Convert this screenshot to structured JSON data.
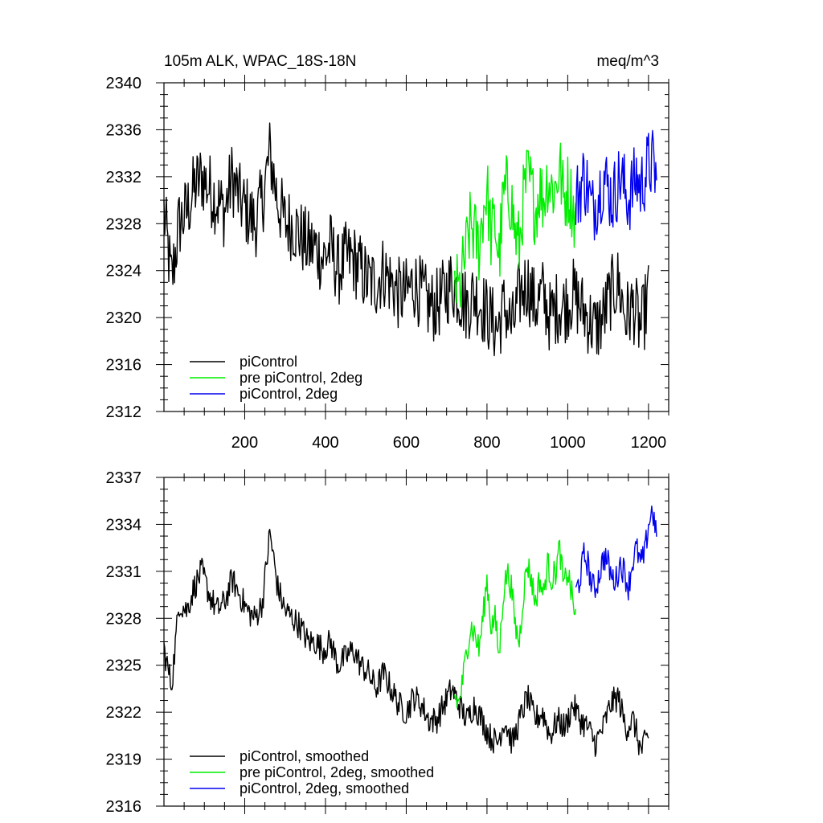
{
  "header": {
    "left": "105m ALK, WPAC_18S-18N",
    "right": "meq/m^3"
  },
  "chart_data": [
    {
      "type": "line",
      "xlim": [
        0,
        1250
      ],
      "ylim": [
        2312,
        2340
      ],
      "xticks": [
        200,
        400,
        600,
        800,
        1000,
        1200
      ],
      "yticks": [
        2312,
        2316,
        2320,
        2324,
        2328,
        2332,
        2336,
        2340
      ],
      "legend_position": "bottom-left",
      "grid": false,
      "series": [
        {
          "name": "piControl",
          "color": "#000000",
          "x_start": 0,
          "x_end": 1200,
          "values": [
            2329,
            2323,
            2328,
            2329,
            2331,
            2332,
            2331,
            2330,
            2329,
            2332,
            2330,
            2329,
            2328,
            2330,
            2334,
            2330,
            2328,
            2328,
            2327,
            2326,
            2326,
            2325,
            2326,
            2324,
            2325,
            2325,
            2324,
            2323,
            2323,
            2324,
            2323,
            2322,
            2322,
            2323,
            2322,
            2321,
            2321,
            2322,
            2323,
            2322,
            2321,
            2322,
            2321,
            2320,
            2319,
            2321,
            2319,
            2322,
            2323,
            2321,
            2322,
            2320,
            2321,
            2321,
            2322,
            2321,
            2320,
            2319,
            2320,
            2322,
            2323,
            2320,
            2321,
            2319,
            2322
          ]
        },
        {
          "name": "pre piControl, 2deg",
          "color": "#00ee00",
          "x_start": 720,
          "x_end": 1020,
          "values": [
            2323,
            2322,
            2324,
            2326,
            2328,
            2327,
            2326,
            2329,
            2331,
            2327,
            2328,
            2325,
            2330,
            2331,
            2330,
            2327,
            2326,
            2330,
            2332,
            2331,
            2329,
            2331,
            2330,
            2332,
            2331,
            2331,
            2333,
            2330,
            2331,
            2330,
            2328
          ]
        },
        {
          "name": "piControl, 2deg",
          "color": "#0000ee",
          "x_start": 1020,
          "x_end": 1220,
          "values": [
            2330,
            2331,
            2332,
            2331,
            2329,
            2330,
            2331,
            2332,
            2331,
            2330,
            2331,
            2332,
            2331,
            2330,
            2331,
            2332,
            2331,
            2332,
            2333,
            2333,
            2332
          ]
        }
      ]
    },
    {
      "type": "line",
      "xlim": [
        0,
        1250
      ],
      "ylim": [
        2316,
        2337
      ],
      "xticks": [
        200,
        400,
        600,
        800,
        1000,
        1200
      ],
      "yticks": [
        2316,
        2319,
        2322,
        2325,
        2328,
        2331,
        2334,
        2337
      ],
      "legend_position": "bottom-left",
      "grid": false,
      "series": [
        {
          "name": "piControl, smoothed",
          "color": "#000000",
          "x_start": 0,
          "x_end": 1200,
          "values": [
            2326,
            2323.7,
            2329,
            2328.5,
            2330,
            2331,
            2329.5,
            2328.5,
            2329,
            2330.5,
            2329.5,
            2328.5,
            2328,
            2329,
            2333.5,
            2330,
            2328.5,
            2328,
            2327.5,
            2326.5,
            2326.5,
            2326,
            2326.5,
            2325,
            2325.5,
            2326,
            2325,
            2324.5,
            2323.5,
            2324.5,
            2323.5,
            2322.5,
            2322,
            2323,
            2322.5,
            2321.5,
            2321.5,
            2322.5,
            2323.5,
            2322.5,
            2321.5,
            2322.5,
            2321.5,
            2320.5,
            2320,
            2321.5,
            2320,
            2321.5,
            2323,
            2321.5,
            2322,
            2320.5,
            2321.5,
            2321,
            2322.5,
            2321.5,
            2321,
            2320,
            2321,
            2322.5,
            2323,
            2321,
            2321.5,
            2319.5,
            2320.5
          ]
        },
        {
          "name": "pre piControl, 2deg, smoothed",
          "color": "#00ee00",
          "x_start": 720,
          "x_end": 1020,
          "values": [
            2323,
            2322.5,
            2324,
            2326,
            2327.5,
            2327,
            2326,
            2328,
            2330.5,
            2327.5,
            2328,
            2325.5,
            2329.5,
            2331,
            2330,
            2327.5,
            2326.5,
            2329.5,
            2331.5,
            2330.5,
            2329,
            2330.5,
            2329.5,
            2331.5,
            2330.5,
            2331,
            2332.5,
            2330,
            2331,
            2329.5,
            2328
          ]
        },
        {
          "name": "piControl, 2deg, smoothed",
          "color": "#0000ee",
          "x_start": 1020,
          "x_end": 1220,
          "values": [
            2329.7,
            2330.5,
            2332,
            2331.5,
            2330,
            2330,
            2331,
            2332,
            2331.5,
            2330.5,
            2330.5,
            2331.5,
            2331,
            2330,
            2331.5,
            2332.5,
            2331.5,
            2332,
            2334,
            2335,
            2333
          ]
        }
      ]
    }
  ]
}
